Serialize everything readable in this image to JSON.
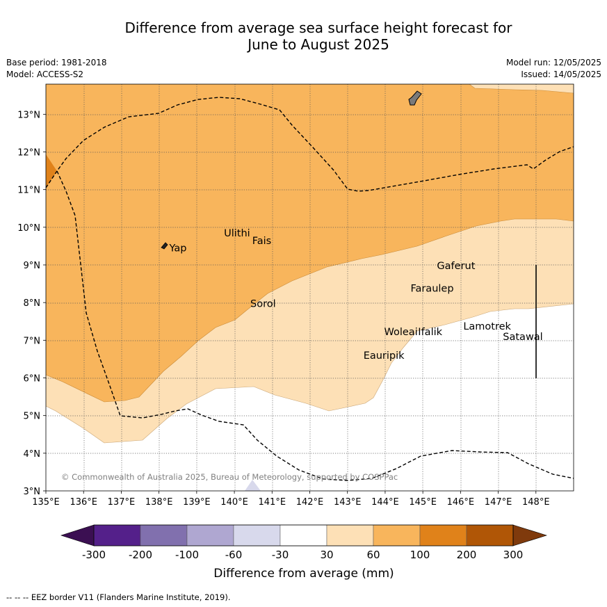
{
  "title": {
    "line1": "Difference from average sea surface height forecast for",
    "line2": "June to August 2025"
  },
  "meta": {
    "base_period": "Base period: 1981-2018",
    "model": "Model: ACCESS-S2",
    "model_run": "Model run: 12/05/2025",
    "issued": "Issued: 14/05/2025"
  },
  "map": {
    "lon_range": [
      135,
      149
    ],
    "lat_range": [
      3,
      13.8
    ],
    "lon_ticks": [
      "135°E",
      "136°E",
      "137°E",
      "138°E",
      "139°E",
      "140°E",
      "141°E",
      "142°E",
      "143°E",
      "144°E",
      "145°E",
      "146°E",
      "147°E",
      "148°E"
    ],
    "lat_ticks": [
      "3°N",
      "4°N",
      "5°N",
      "6°N",
      "7°N",
      "8°N",
      "9°N",
      "10°N",
      "11°N",
      "12°N",
      "13°N"
    ],
    "copyright": "© Commonwealth of Australia 2025, Bureau of Meteorology, supported by COSPPac",
    "places": [
      {
        "name": "Yap",
        "lon": 138.2,
        "lat": 9.45
      },
      {
        "name": "Ulithi",
        "lon": 139.65,
        "lat": 9.85
      },
      {
        "name": "Fais",
        "lon": 140.4,
        "lat": 9.65
      },
      {
        "name": "Sorol",
        "lon": 140.35,
        "lat": 7.98
      },
      {
        "name": "Gaferut",
        "lon": 145.3,
        "lat": 8.98
      },
      {
        "name": "Faraulep",
        "lon": 144.6,
        "lat": 8.38
      },
      {
        "name": "Woleai",
        "lon": 143.9,
        "lat": 7.23
      },
      {
        "name": "Ifalik",
        "lon": 144.8,
        "lat": 7.23
      },
      {
        "name": "Lamotrek",
        "lon": 146.0,
        "lat": 7.38
      },
      {
        "name": "Satawal",
        "lon": 147.05,
        "lat": 7.1
      },
      {
        "name": "Eauripik",
        "lon": 143.35,
        "lat": 6.6
      }
    ]
  },
  "colorbar": {
    "ticks": [
      "-300",
      "-200",
      "-100",
      "-60",
      "-30",
      "30",
      "60",
      "100",
      "200",
      "300"
    ],
    "colors": [
      "#3b0f52",
      "#54208a",
      "#8170ae",
      "#afa7d1",
      "#d8d9ec",
      "#ffffff",
      "#fde0b6",
      "#f8b55c",
      "#e0821a",
      "#b05606",
      "#7f3a0c"
    ],
    "label": "Difference from average (mm)"
  },
  "footnote": "--  --  -- EEZ border V11 (Flanders Marine Institute, 2019)."
}
